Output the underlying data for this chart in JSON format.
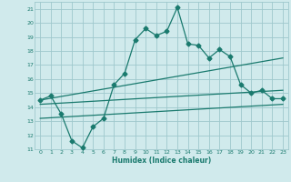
{
  "xlabel": "Humidex (Indice chaleur)",
  "bg_color": "#d0eaec",
  "grid_color": "#9ec8cc",
  "line_color": "#1a7a6e",
  "xlim": [
    -0.5,
    23.5
  ],
  "ylim": [
    11,
    21.5
  ],
  "xticks": [
    0,
    1,
    2,
    3,
    4,
    5,
    6,
    7,
    8,
    9,
    10,
    11,
    12,
    13,
    14,
    15,
    16,
    17,
    18,
    19,
    20,
    21,
    22,
    23
  ],
  "yticks": [
    11,
    12,
    13,
    14,
    15,
    16,
    17,
    18,
    19,
    20,
    21
  ],
  "line1_x": [
    0,
    1,
    2,
    3,
    4,
    5,
    6,
    7,
    8,
    9,
    10,
    11,
    12,
    13,
    14,
    15,
    16,
    17,
    18,
    19,
    20,
    21,
    22,
    23
  ],
  "line1_y": [
    14.5,
    14.8,
    13.5,
    11.6,
    11.1,
    12.6,
    13.2,
    15.6,
    16.4,
    18.8,
    19.6,
    19.1,
    19.4,
    21.1,
    18.5,
    18.4,
    17.5,
    18.1,
    17.6,
    15.6,
    15.0,
    15.2,
    14.6,
    14.6
  ],
  "line2_x": [
    0,
    23
  ],
  "line2_y": [
    14.5,
    17.5
  ],
  "line3_x": [
    0,
    23
  ],
  "line3_y": [
    14.2,
    15.2
  ],
  "line4_x": [
    0,
    23
  ],
  "line4_y": [
    13.2,
    14.2
  ]
}
